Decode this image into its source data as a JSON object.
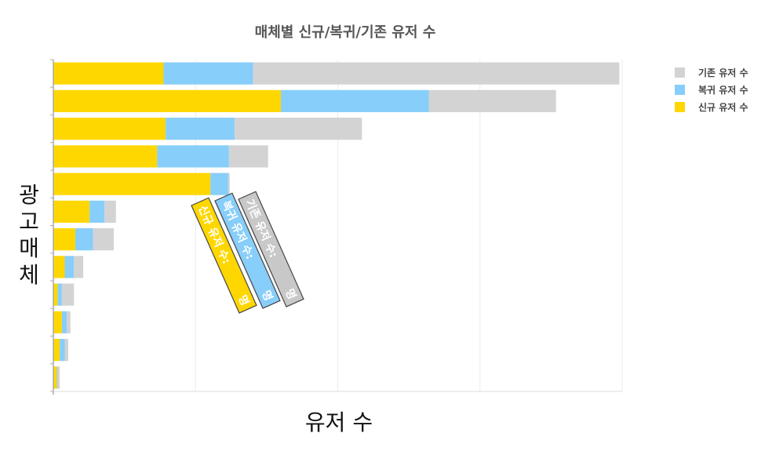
{
  "chart_data": {
    "type": "bar",
    "orientation": "horizontal",
    "stacked": true,
    "title": "매체별 신규/복귀/기존 유저 수",
    "xlabel": "유저 수",
    "ylabel": "광고매체",
    "categories": [
      "",
      "",
      "",
      "",
      "",
      "",
      "",
      "",
      "",
      "",
      "",
      ""
    ],
    "series": [
      {
        "name": "신규 유저 수",
        "color": "#FFD700",
        "values": [
          155,
          320,
          158,
          146,
          221,
          51,
          31,
          16,
          6,
          12,
          9,
          5
        ]
      },
      {
        "name": "복귀 유저 수",
        "color": "#87CEFA",
        "values": [
          126,
          208,
          97,
          101,
          25,
          21,
          25,
          13,
          6,
          7,
          7,
          1
        ]
      },
      {
        "name": "기존 유저 수",
        "color": "#D3D3D3",
        "values": [
          515,
          179,
          179,
          55,
          2,
          16,
          29,
          13,
          17,
          5,
          5,
          3
        ]
      }
    ],
    "xlim": [
      0,
      800
    ],
    "grid": true,
    "legend": {
      "position": "top-right"
    },
    "tooltip": {
      "items": [
        "신규 유저 수:",
        "복귀 유저 수:",
        "기존 유저 수:"
      ],
      "unit": "명"
    }
  }
}
